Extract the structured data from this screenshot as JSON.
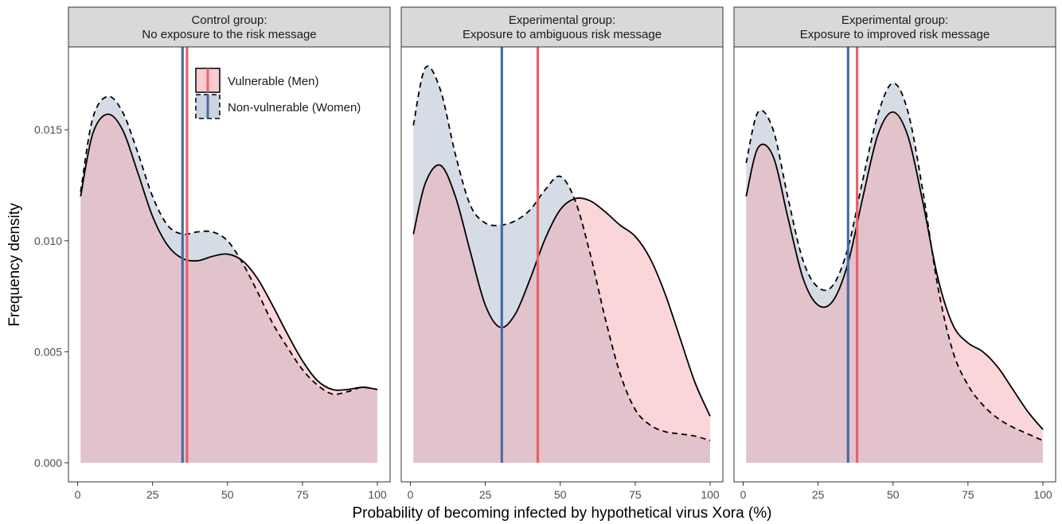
{
  "chart_data": {
    "type": "area",
    "xlabel": "Probability of becoming infected by hypothetical virus Xora (%)",
    "ylabel": "Frequency density",
    "xlim": [
      0,
      100
    ],
    "ylim": [
      0,
      0.0185
    ],
    "x_ticks": [
      0,
      25,
      50,
      75,
      100
    ],
    "y_ticks": [
      0.0,
      0.005,
      0.01,
      0.015
    ],
    "y_tick_labels": [
      "0.000",
      "0.005",
      "0.010",
      "0.015"
    ],
    "grid": false,
    "legend_position": "top-right",
    "legend": [
      {
        "label": "Vulnerable (Men)",
        "series_key": "men",
        "fill": "#f4a3aa",
        "line": "solid"
      },
      {
        "label": "Non-vulnerable (Women)",
        "series_key": "women",
        "fill": "#a3b1c8",
        "line": "dashed"
      }
    ],
    "colors": {
      "men": "#e8636b",
      "women": "#4a6aa5",
      "panel_strip": "#d9d9d9"
    },
    "panels": [
      {
        "strip": [
          "Control group:",
          "No exposure to the risk message"
        ],
        "mean_lines": {
          "women": 35,
          "men": 36.5
        },
        "series": [
          {
            "name": "Vulnerable (Men)",
            "key": "men",
            "style": "solid",
            "x": [
              1,
              5,
              10,
              15,
              20,
              25,
              30,
              35,
              40,
              45,
              50,
              55,
              60,
              65,
              70,
              75,
              80,
              85,
              90,
              95,
              100
            ],
            "y": [
              0.012,
              0.0148,
              0.0157,
              0.015,
              0.0131,
              0.0111,
              0.0098,
              0.0092,
              0.0091,
              0.0093,
              0.0094,
              0.0091,
              0.0083,
              0.0071,
              0.0058,
              0.0046,
              0.0037,
              0.0033,
              0.0033,
              0.0034,
              0.0033
            ]
          },
          {
            "name": "Non-vulnerable (Women)",
            "key": "women",
            "style": "dashed",
            "x": [
              1,
              5,
              10,
              15,
              20,
              25,
              30,
              35,
              40,
              45,
              50,
              55,
              60,
              65,
              70,
              75,
              80,
              85,
              90,
              95,
              100
            ],
            "y": [
              0.0122,
              0.0155,
              0.0165,
              0.0158,
              0.014,
              0.012,
              0.0107,
              0.0103,
              0.0104,
              0.0104,
              0.01,
              0.009,
              0.0077,
              0.0063,
              0.0052,
              0.0042,
              0.0035,
              0.0031,
              0.0032,
              0.0034,
              0.0033
            ]
          }
        ]
      },
      {
        "strip": [
          "Experimental group:",
          "Exposure to ambiguous risk message"
        ],
        "mean_lines": {
          "women": 30.5,
          "men": 42.5
        },
        "series": [
          {
            "name": "Vulnerable (Men)",
            "key": "men",
            "style": "solid",
            "x": [
              1,
              5,
              10,
              15,
              20,
              25,
              30,
              35,
              40,
              45,
              50,
              55,
              60,
              65,
              70,
              75,
              80,
              85,
              90,
              95,
              100
            ],
            "y": [
              0.0103,
              0.0126,
              0.0134,
              0.012,
              0.0095,
              0.0071,
              0.0061,
              0.0067,
              0.0083,
              0.0101,
              0.0114,
              0.0119,
              0.0118,
              0.0113,
              0.0107,
              0.0102,
              0.0092,
              0.0076,
              0.0056,
              0.0036,
              0.0021
            ]
          },
          {
            "name": "Non-vulnerable (Women)",
            "key": "women",
            "style": "dashed",
            "x": [
              1,
              5,
              10,
              15,
              20,
              25,
              30,
              35,
              40,
              45,
              50,
              55,
              60,
              65,
              70,
              75,
              80,
              85,
              90,
              95,
              100
            ],
            "y": [
              0.0152,
              0.0178,
              0.0168,
              0.0139,
              0.0116,
              0.0108,
              0.0107,
              0.0109,
              0.0114,
              0.0123,
              0.0129,
              0.0118,
              0.0094,
              0.0065,
              0.004,
              0.0024,
              0.0017,
              0.0014,
              0.0013,
              0.0012,
              0.001
            ]
          }
        ]
      },
      {
        "strip": [
          "Experimental group:",
          "Exposure to improved risk message"
        ],
        "mean_lines": {
          "women": 35,
          "men": 38
        },
        "series": [
          {
            "name": "Vulnerable (Men)",
            "key": "men",
            "style": "solid",
            "x": [
              1,
              5,
              10,
              15,
              20,
              25,
              30,
              35,
              40,
              45,
              50,
              55,
              60,
              65,
              70,
              75,
              80,
              85,
              90,
              95,
              100
            ],
            "y": [
              0.012,
              0.0142,
              0.0138,
              0.011,
              0.0083,
              0.0071,
              0.0073,
              0.009,
              0.012,
              0.0148,
              0.0158,
              0.0147,
              0.0117,
              0.0083,
              0.0062,
              0.0054,
              0.005,
              0.0043,
              0.0033,
              0.0023,
              0.0015
            ]
          },
          {
            "name": "Non-vulnerable (Women)",
            "key": "women",
            "style": "dashed",
            "x": [
              1,
              5,
              10,
              15,
              20,
              25,
              30,
              35,
              40,
              45,
              50,
              55,
              60,
              65,
              70,
              75,
              80,
              85,
              90,
              95,
              100
            ],
            "y": [
              0.0135,
              0.0158,
              0.015,
              0.0119,
              0.0091,
              0.0079,
              0.008,
              0.0097,
              0.0128,
              0.0157,
              0.0171,
              0.0158,
              0.0122,
              0.0079,
              0.005,
              0.0035,
              0.0026,
              0.002,
              0.0016,
              0.0013,
              0.001
            ]
          }
        ]
      }
    ]
  }
}
